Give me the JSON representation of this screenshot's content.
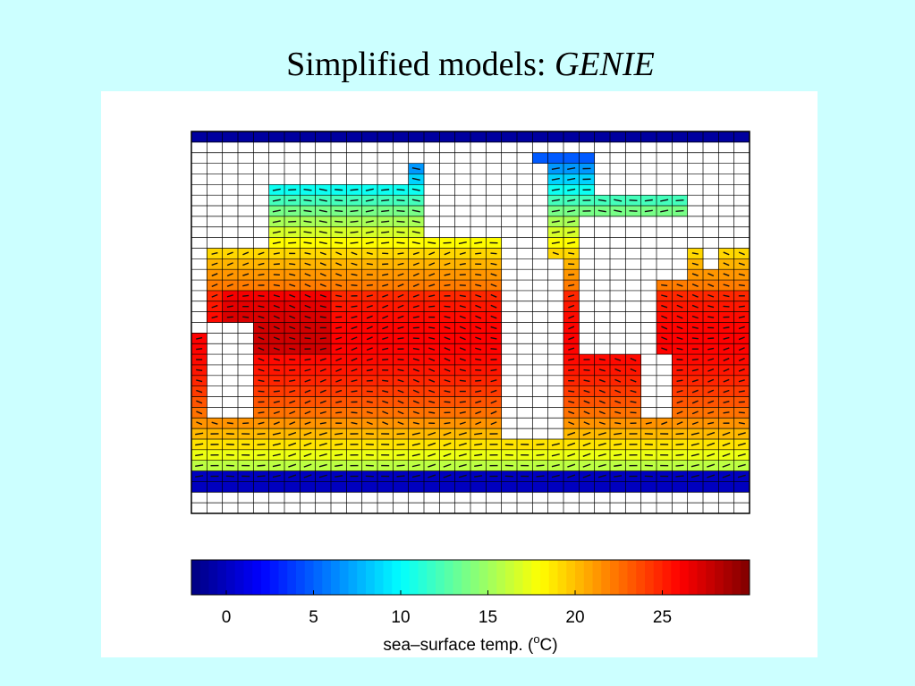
{
  "slide": {
    "title_prefix": "Simplified models: ",
    "title_emphasis": "GENIE"
  },
  "colorbar": {
    "label_text": "sea–surface temp. (",
    "label_sup": "o",
    "label_end": "C)",
    "ticks": [
      "0",
      "5",
      "10",
      "15",
      "20",
      "25"
    ],
    "range": [
      -2,
      30
    ],
    "colormap": "jet"
  },
  "map": {
    "grid_columns": 36,
    "grid_rows": 36,
    "land_color": "#ffffff",
    "grid_line_color": "#000000"
  }
}
